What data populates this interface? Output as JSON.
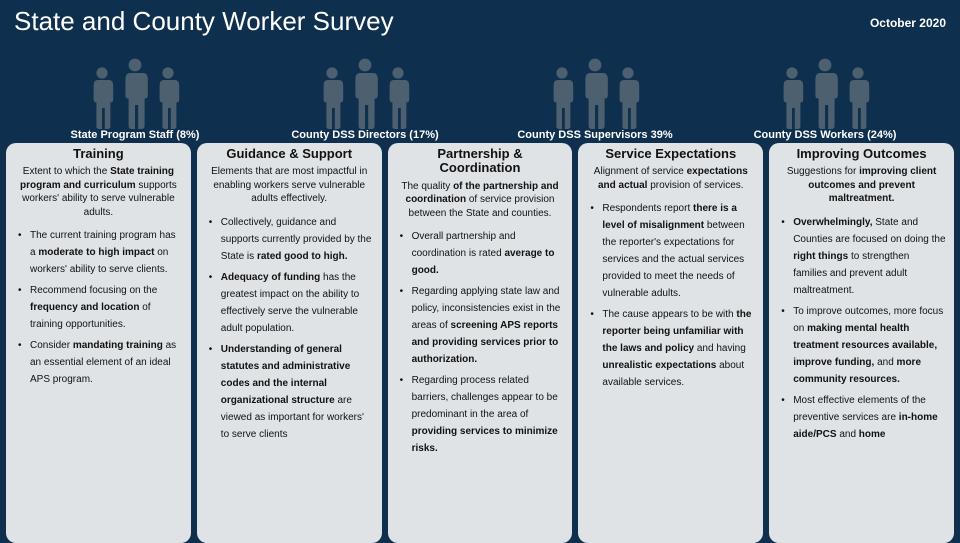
{
  "header": {
    "title": "State and County Worker Survey",
    "date": "October 2020"
  },
  "groups": [
    {
      "label": "State Program Staff (8%)",
      "people": 3
    },
    {
      "label": "County DSS Directors (17%)",
      "people": 3
    },
    {
      "label": "County DSS Supervisors 39%",
      "people": 3
    },
    {
      "label": "County DSS Workers (24%)",
      "people": 3
    }
  ],
  "columns": [
    {
      "title": "Training",
      "desc": "Extent to which the <b>State training program and curriculum</b> supports workers' ability to serve vulnerable adults.",
      "bullets": [
        "The current training program has a <b>moderate to high impact</b> on workers' ability to serve clients.",
        "Recommend focusing on the <b>frequency and location</b> of training opportunities.",
        "Consider <b>mandating training</b> as an essential element of an ideal APS program."
      ]
    },
    {
      "title": "Guidance & Support",
      "desc": "Elements that are most impactful in enabling workers serve vulnerable adults effectively.",
      "bullets": [
        "Collectively, guidance and supports currently provided by the State is <b>rated good to high.</b>",
        "<b>Adequacy of funding</b> has the greatest impact on the ability to effectively serve the vulnerable adult population.",
        "<b>Understanding of general statutes and administrative codes and the internal organizational structure</b> are viewed as important for workers' to serve clients"
      ]
    },
    {
      "title": "Partnership &<br>Coordination",
      "desc": "The quality <b>of the partnership and coordination</b> of service provision between the State and counties.",
      "bullets": [
        "Overall partnership and coordination is rated <b>average to good.</b>",
        "Regarding applying state law and policy, inconsistencies exist in the areas of <b>screening APS reports and providing services prior to authorization.</b>",
        "Regarding process related barriers, challenges appear to be predominant in the area of <b>providing services to minimize risks.</b>"
      ]
    },
    {
      "title": "Service Expectations",
      "desc": "Alignment of service <b>expectations and actual</b> provision of services.",
      "bullets": [
        "Respondents report <b>there is a level of misalignment</b> between the reporter's expectations for services and the actual services provided to meet the needs of vulnerable adults.",
        "The cause appears to be with <b>the reporter being unfamiliar with the laws and policy</b> and having <b>unrealistic expectations</b> about available services."
      ]
    },
    {
      "title": "Improving Outcomes",
      "desc": "Suggestions for <b>improving client outcomes and prevent maltreatment.</b>",
      "bullets": [
        "<b>Overwhelmingly,</b> State and Counties are focused on doing the <b>right things</b> to strengthen families and prevent adult maltreatment.",
        "To improve outcomes, more focus on <b>making mental health treatment resources available, improve funding,</b> and <b>more community resources.</b>",
        "Most effective elements of the preventive services are <b>in-home aide/PCS</b> and <b>home</b>"
      ]
    }
  ],
  "style": {
    "page_bg": "#0f2f4f",
    "card_bg": "#dfe3e6",
    "silhouette_fill": "#4d6070",
    "title_fontsize": 26,
    "date_fontsize": 12,
    "group_label_fontsize": 11,
    "col_title_fontsize": 13,
    "body_fontsize": 10
  }
}
